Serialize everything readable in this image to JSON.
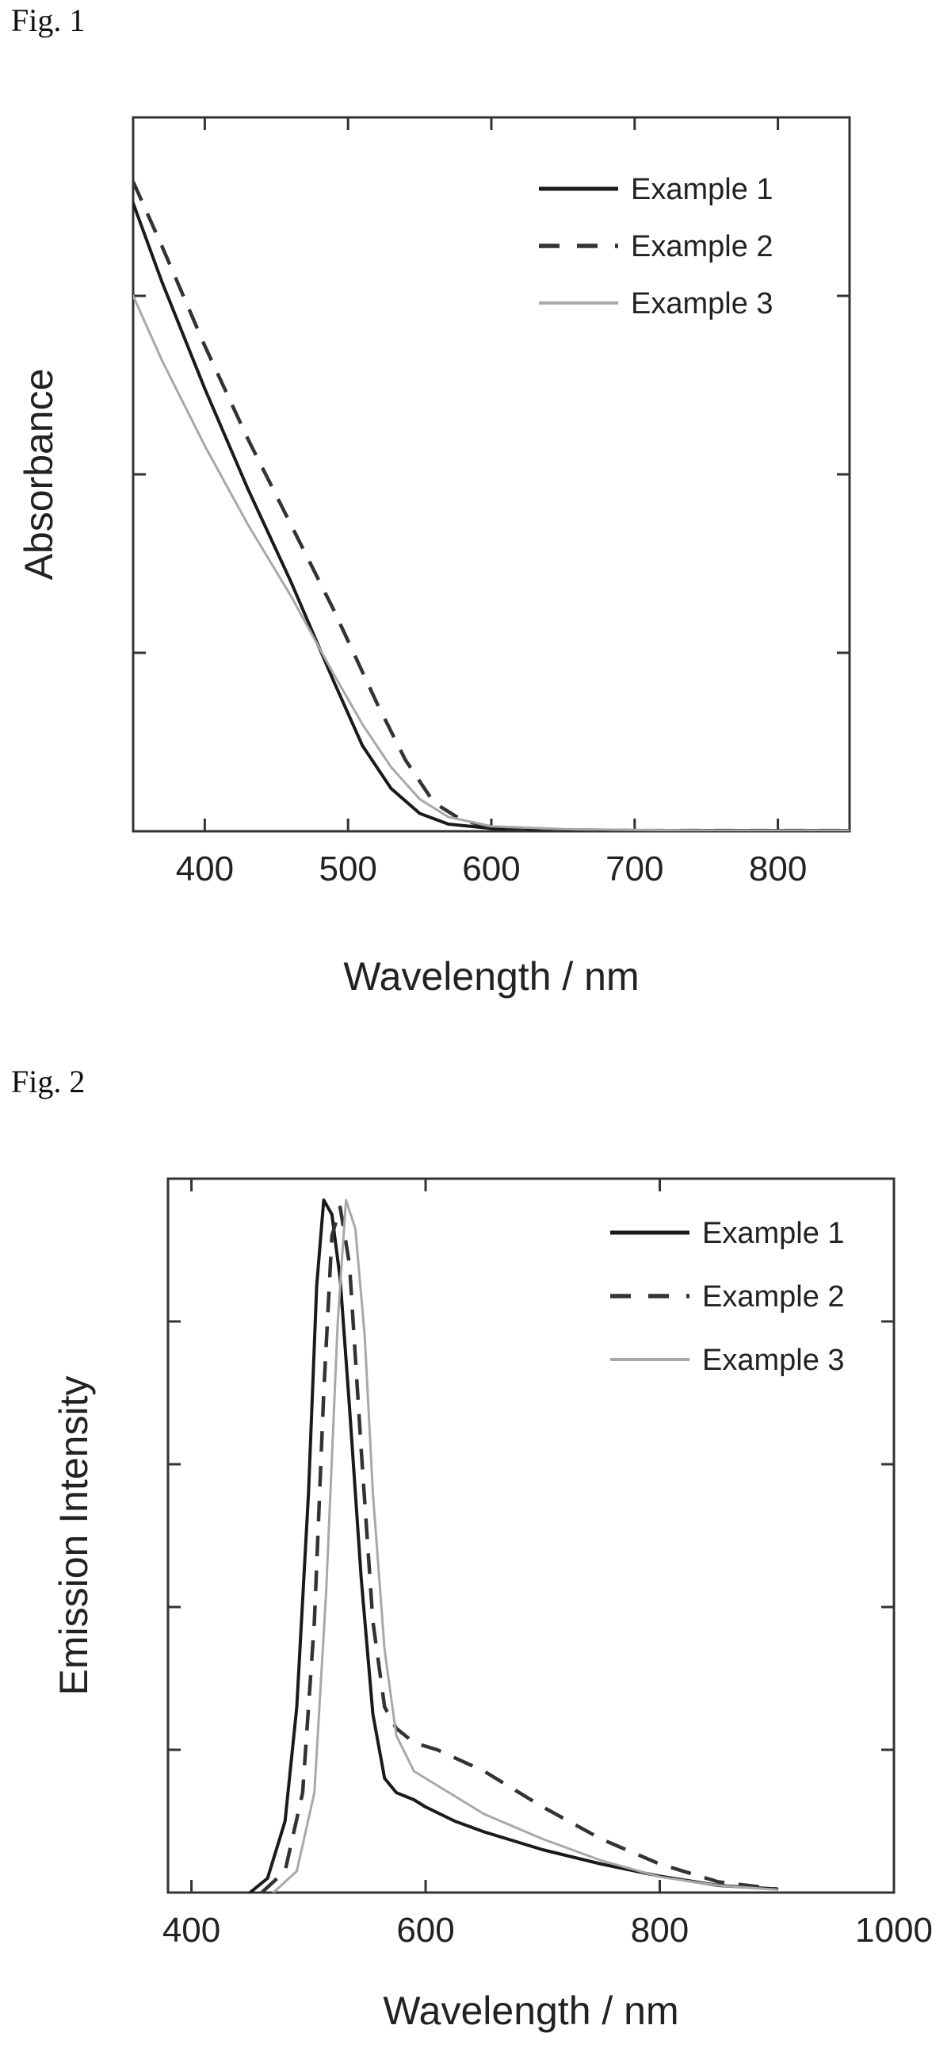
{
  "figures": [
    {
      "label": "Fig. 1"
    },
    {
      "label": "Fig. 2"
    }
  ],
  "colors": {
    "example1": "#1a1a1a",
    "example2": "#333333",
    "example3": "#a8a8a8",
    "frame": "#333333"
  },
  "chart_data": [
    {
      "type": "line",
      "title": "",
      "xlabel": "Wavelength / nm",
      "ylabel": "Absorbance",
      "xlim": [
        350,
        850
      ],
      "ylim": [
        0,
        1.0
      ],
      "xticks": [
        400,
        500,
        600,
        700,
        800
      ],
      "yticks_labeled": false,
      "grid": false,
      "legend": "top-right",
      "series": [
        {
          "name": "Example 1",
          "style": "solid",
          "x": [
            350,
            370,
            400,
            430,
            460,
            490,
            510,
            530,
            550,
            570,
            600,
            650,
            700,
            750,
            800,
            850
          ],
          "y": [
            0.88,
            0.77,
            0.62,
            0.48,
            0.35,
            0.21,
            0.12,
            0.06,
            0.025,
            0.01,
            0.004,
            0.002,
            0.001,
            0.001,
            0.001,
            0.001
          ]
        },
        {
          "name": "Example 2",
          "style": "dashed",
          "x": [
            350,
            370,
            400,
            430,
            460,
            490,
            520,
            540,
            560,
            580,
            600,
            650,
            700,
            750,
            800,
            850
          ],
          "y": [
            0.91,
            0.82,
            0.68,
            0.55,
            0.43,
            0.31,
            0.18,
            0.1,
            0.04,
            0.015,
            0.006,
            0.002,
            0.001,
            0.001,
            0.001,
            0.001
          ]
        },
        {
          "name": "Example 3",
          "style": "solid",
          "x": [
            350,
            370,
            400,
            430,
            460,
            490,
            510,
            530,
            550,
            570,
            600,
            650,
            700,
            750,
            800,
            850
          ],
          "y": [
            0.75,
            0.66,
            0.54,
            0.43,
            0.33,
            0.22,
            0.15,
            0.09,
            0.045,
            0.02,
            0.007,
            0.003,
            0.002,
            0.001,
            0.001,
            0.001
          ]
        }
      ]
    },
    {
      "type": "line",
      "title": "",
      "xlabel": "Wavelength / nm",
      "ylabel": "Emission Intensity",
      "xlim": [
        380,
        1000
      ],
      "ylim": [
        0,
        1.0
      ],
      "xticks": [
        400,
        600,
        800,
        1000
      ],
      "yticks_labeled": false,
      "grid": false,
      "legend": "top-right",
      "series": [
        {
          "name": "Example 1",
          "style": "solid",
          "x": [
            450,
            465,
            480,
            490,
            500,
            507,
            513,
            520,
            527,
            535,
            545,
            555,
            565,
            575,
            590,
            600,
            625,
            650,
            700,
            750,
            800,
            850,
            900
          ],
          "y": [
            0,
            0.02,
            0.1,
            0.26,
            0.56,
            0.85,
            0.97,
            0.95,
            0.86,
            0.68,
            0.44,
            0.25,
            0.16,
            0.14,
            0.13,
            0.12,
            0.1,
            0.085,
            0.06,
            0.04,
            0.023,
            0.01,
            0.005
          ]
        },
        {
          "name": "Example 2",
          "style": "dashed",
          "x": [
            460,
            480,
            495,
            505,
            513,
            520,
            527,
            535,
            545,
            555,
            565,
            575,
            590,
            610,
            650,
            700,
            750,
            800,
            850,
            900
          ],
          "y": [
            0,
            0.03,
            0.14,
            0.38,
            0.7,
            0.92,
            0.96,
            0.88,
            0.62,
            0.38,
            0.26,
            0.23,
            0.21,
            0.2,
            0.17,
            0.12,
            0.075,
            0.04,
            0.015,
            0.005
          ]
        },
        {
          "name": "Example 3",
          "style": "solid",
          "x": [
            470,
            490,
            505,
            515,
            525,
            532,
            540,
            548,
            555,
            565,
            575,
            590,
            610,
            650,
            700,
            750,
            800,
            850,
            900
          ],
          "y": [
            0,
            0.03,
            0.14,
            0.42,
            0.8,
            0.97,
            0.93,
            0.78,
            0.56,
            0.34,
            0.22,
            0.17,
            0.15,
            0.11,
            0.075,
            0.045,
            0.022,
            0.01,
            0.004
          ]
        }
      ]
    }
  ]
}
